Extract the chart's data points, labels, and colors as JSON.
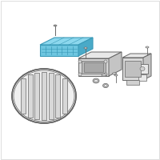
{
  "background_color": "#ffffff",
  "border_color": "#d0d0d0",
  "highlight_fill": "#6ec6e0",
  "highlight_edge": "#3a9ab8",
  "line_color": "#666666",
  "part_fill": "#e8e8e8",
  "part_edge": "#888888",
  "dark_fill": "#cccccc",
  "fig_size": [
    2.0,
    2.0
  ],
  "dpi": 100
}
